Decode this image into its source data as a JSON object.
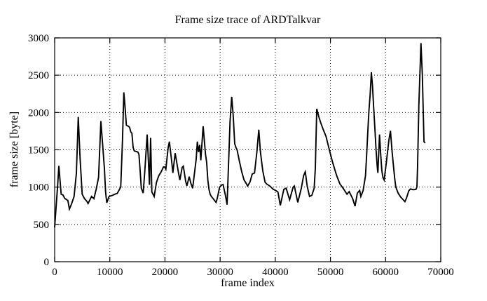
{
  "chart_data": {
    "type": "line",
    "title": "Frame size trace of ARDTalkvar",
    "xlabel": "frame index",
    "ylabel": "frame size [byte]",
    "xlim": [
      0,
      70000
    ],
    "ylim": [
      0,
      3000
    ],
    "x_ticks": [
      0,
      10000,
      20000,
      30000,
      40000,
      50000,
      60000,
      70000
    ],
    "y_ticks": [
      0,
      500,
      1000,
      1500,
      2000,
      2500,
      3000
    ],
    "grid": "dotted",
    "legend_position": "none",
    "line_color": "#000000",
    "background_color": "#ffffff",
    "series": [
      {
        "name": "frame size trace",
        "x": [
          0,
          550,
          760,
          1180,
          1500,
          1820,
          2400,
          2670,
          3090,
          3520,
          3940,
          4280,
          4600,
          4990,
          5420,
          5840,
          6060,
          6690,
          7115,
          7530,
          7960,
          8380,
          9020,
          9230,
          9450,
          9870,
          10500,
          10920,
          11340,
          11980,
          12300,
          12540,
          12740,
          13000,
          13380,
          13590,
          13800,
          14010,
          14230,
          14440,
          15080,
          15280,
          15500,
          15710,
          16050,
          16350,
          16770,
          16980,
          17190,
          17400,
          17620,
          17830,
          18040,
          18460,
          18890,
          19310,
          19730,
          19950,
          20160,
          20580,
          20800,
          21220,
          21430,
          21850,
          22490,
          22700,
          23120,
          23330,
          23750,
          23970,
          24390,
          24700,
          25020,
          25660,
          25870,
          26080,
          26290,
          26500,
          26920,
          27350,
          27560,
          27770,
          27980,
          28190,
          28400,
          28800,
          29260,
          29470,
          29900,
          30320,
          30530,
          30960,
          31260,
          31590,
          31800,
          32100,
          32360,
          32650,
          32870,
          33070,
          33500,
          33920,
          34340,
          34770,
          34980,
          35400,
          35820,
          36240,
          36660,
          37010,
          37310,
          37520,
          37730,
          38150,
          38470,
          39000,
          39640,
          40060,
          40480,
          40910,
          41550,
          41970,
          42600,
          43240,
          43450,
          44080,
          44720,
          45140,
          45440,
          45780,
          46210,
          46630,
          47050,
          47260,
          47520,
          47900,
          48300,
          48700,
          49200,
          49800,
          50400,
          51100,
          51700,
          52300,
          53000,
          53400,
          54030,
          54460,
          54880,
          55300,
          55510,
          55930,
          56360,
          56570,
          56780,
          56990,
          57200,
          57420,
          57630,
          57840,
          58060,
          58270,
          58480,
          58600,
          58900,
          59110,
          59320,
          59530,
          59740,
          60160,
          60590,
          60880,
          61220,
          61640,
          61850,
          62270,
          62700,
          63200,
          63500,
          63800,
          64200,
          64500,
          65000,
          65500,
          65680,
          65800,
          66030,
          66410,
          66660,
          66960,
          67170
        ],
        "y": [
          460,
          1030,
          1285,
          905,
          895,
          850,
          820,
          705,
          780,
          875,
          1185,
          1940,
          1400,
          905,
          845,
          810,
          780,
          875,
          845,
          970,
          1130,
          1885,
          1250,
          940,
          790,
          875,
          890,
          905,
          915,
          1000,
          1630,
          2270,
          2100,
          1830,
          1815,
          1800,
          1740,
          1720,
          1530,
          1485,
          1470,
          1440,
          1220,
          985,
          920,
          1220,
          1705,
          1375,
          1030,
          1660,
          935,
          905,
          875,
          1065,
          1155,
          1205,
          1270,
          1270,
          1240,
          1530,
          1610,
          1345,
          1190,
          1455,
          1175,
          1095,
          1265,
          1280,
          1080,
          1015,
          1140,
          1050,
          985,
          1375,
          1610,
          1470,
          1565,
          1360,
          1815,
          1440,
          1330,
          1095,
          970,
          905,
          875,
          840,
          795,
          845,
          1000,
          1030,
          1035,
          890,
          765,
          1440,
          1880,
          2210,
          1970,
          1580,
          1530,
          1500,
          1345,
          1205,
          1095,
          1045,
          1015,
          1065,
          1175,
          1190,
          1470,
          1770,
          1470,
          1345,
          1220,
          1065,
          1040,
          1015,
          970,
          955,
          935,
          755,
          970,
          985,
          830,
          1000,
          1015,
          795,
          985,
          1155,
          1205,
          1015,
          875,
          890,
          985,
          1250,
          2050,
          1940,
          1850,
          1770,
          1680,
          1500,
          1330,
          1160,
          1045,
          985,
          905,
          940,
          845,
          745,
          920,
          955,
          875,
          955,
          1155,
          1440,
          1750,
          2035,
          2240,
          2540,
          2350,
          2065,
          1785,
          1500,
          1280,
          1190,
          1705,
          1440,
          1220,
          1125,
          1095,
          1345,
          1625,
          1755,
          1440,
          1125,
          1000,
          920,
          870,
          830,
          805,
          855,
          950,
          975,
          965,
          970,
          1000,
          1280,
          2100,
          2930,
          2505,
          1610,
          1590
        ]
      }
    ]
  }
}
